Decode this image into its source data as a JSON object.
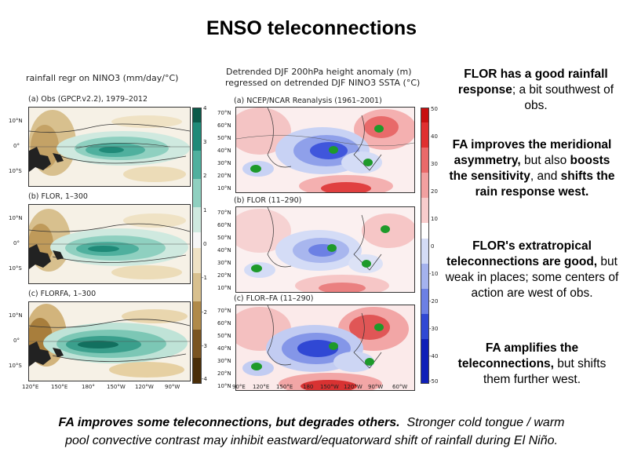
{
  "title": "ENSO teleconnections",
  "left_figure": {
    "header": "rainfall regr on NINO3 (mm/day/°C)",
    "panels": [
      {
        "label": "(a) Obs (GPCP.v2.2), 1979–2012"
      },
      {
        "label": "(b) FLOR, 1–300"
      },
      {
        "label": "(c) FLORFA, 1–300"
      }
    ],
    "lat_ticks": [
      "10°N",
      "0°",
      "10°S"
    ],
    "lon_ticks": [
      "120°E",
      "150°E",
      "180°",
      "150°W",
      "120°W",
      "90°W"
    ],
    "colorbar_ticks": [
      "4",
      "3",
      "2",
      "1",
      "0",
      "-1",
      "-2",
      "-3",
      "-4"
    ],
    "colors": {
      "wet": "#1f8a78",
      "dry": "#b08a4a"
    }
  },
  "right_figure": {
    "header_line1": "Detrended DJF 200hPa height anomaly (m)",
    "header_line2": "regressed on detrended DJF NINO3 SSTA (°C)",
    "panels": [
      {
        "label": "(a) NCEP/NCAR Reanalysis (1961–2001)"
      },
      {
        "label": "(b) FLOR (11–290)"
      },
      {
        "label": "(c) FLOR–FA (11–290)"
      }
    ],
    "lat_ticks": [
      "70°N",
      "60°N",
      "50°N",
      "40°N",
      "30°N",
      "20°N",
      "10°N"
    ],
    "lon_ticks": [
      "90°E",
      "120°E",
      "150°E",
      "180",
      "150°W",
      "120°W",
      "90°W",
      "60°W"
    ],
    "colorbar_ticks": [
      "50",
      "40",
      "30",
      "20",
      "10",
      "0",
      "-10",
      "-20",
      "-30",
      "-40",
      "-50"
    ],
    "colors": {
      "positive": "#e03030",
      "negative": "#2040d8",
      "marker": "#1e9a2a"
    }
  },
  "notes": [
    {
      "parts": [
        {
          "t": "FLOR has a good rainfall response",
          "b": true
        },
        {
          "t": "; a bit southwest of obs.",
          "b": false
        }
      ]
    },
    {
      "parts": [
        {
          "t": "FA improves the meridional asymmetry,",
          "b": true
        },
        {
          "t": " but also ",
          "b": false
        },
        {
          "t": "boosts the sensitivity",
          "b": true
        },
        {
          "t": ", and ",
          "b": false
        },
        {
          "t": "shifts the rain response west.",
          "b": true
        }
      ]
    },
    {
      "parts": [
        {
          "t": "FLOR's extratropical teleconnections are good,",
          "b": true
        },
        {
          "t": " but weak in places; some centers of action are west of obs.",
          "b": false
        }
      ]
    },
    {
      "parts": [
        {
          "t": "FA amplifies the teleconnections,",
          "b": true
        },
        {
          "t": " but shifts them further west.",
          "b": false
        }
      ]
    }
  ],
  "footer": {
    "line1": "FA improves some teleconnections, but degrades others.",
    "line1b": "Stronger cold tongue / warm",
    "line2": "pool convective contrast may inhibit eastward/equatorward shift of rainfall during El Niño."
  }
}
